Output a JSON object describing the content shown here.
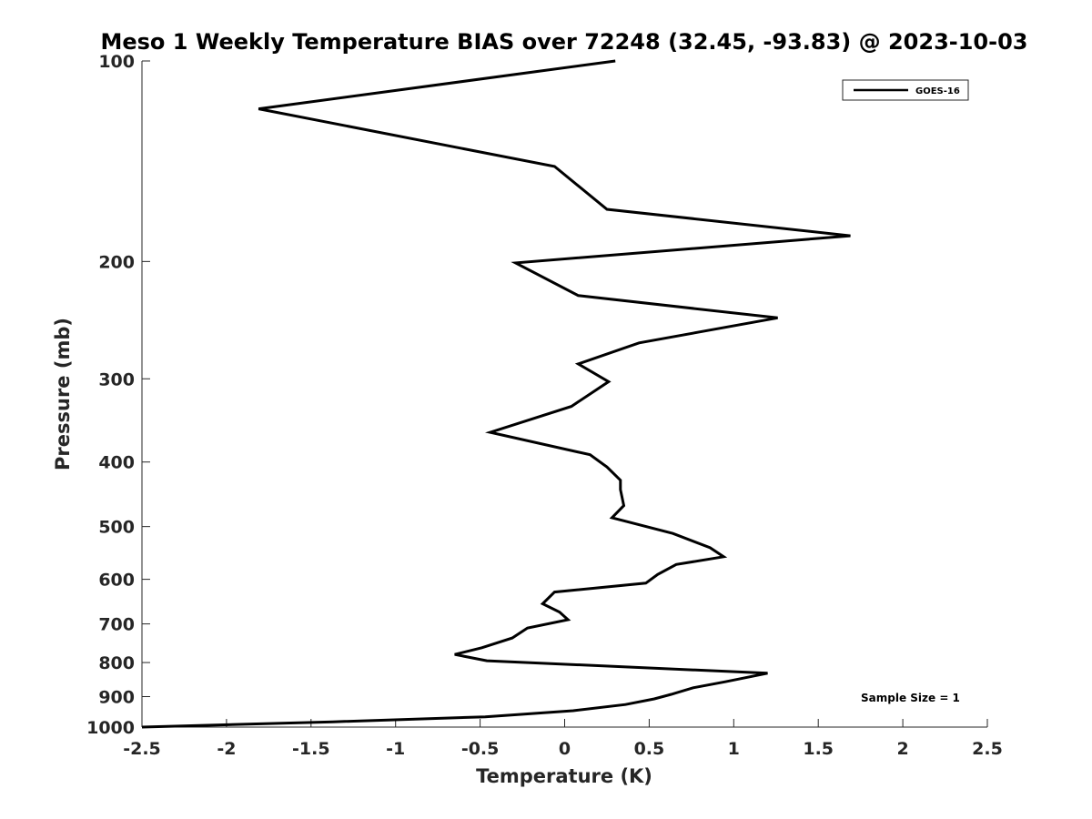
{
  "chart_data": {
    "type": "line",
    "title": "Meso 1 Weekly Temperature BIAS over 72248 (32.45, -93.83) @ 2023-10-03",
    "xlabel": "Temperature (K)",
    "ylabel": "Pressure (mb)",
    "xlim": [
      -2.5,
      2.5
    ],
    "ylim": [
      100,
      1000
    ],
    "y_scale": "log",
    "y_reversed": true,
    "grid": false,
    "x_ticks": [
      "-2.5",
      "-2",
      "-1.5",
      "-1",
      "-0.5",
      "0",
      "0.5",
      "1",
      "1.5",
      "2",
      "2.5"
    ],
    "y_ticks": [
      "100",
      "200",
      "300",
      "400",
      "500",
      "600",
      "700",
      "800",
      "900",
      "1000"
    ],
    "legend": {
      "position": "top-right",
      "entries": [
        "GOES-16"
      ]
    },
    "annotation": "Sample Size = 1",
    "series": [
      {
        "name": "GOES-16",
        "color": "#000000",
        "points": [
          [
            0.3,
            100
          ],
          [
            -1.81,
            118
          ],
          [
            -0.06,
            144
          ],
          [
            0.25,
            167
          ],
          [
            1.69,
            183
          ],
          [
            -0.29,
            201
          ],
          [
            0.08,
            225
          ],
          [
            1.26,
            243
          ],
          [
            0.44,
            265
          ],
          [
            0.08,
            285
          ],
          [
            0.26,
            303
          ],
          [
            0.04,
            330
          ],
          [
            -0.44,
            361
          ],
          [
            0.15,
            390
          ],
          [
            0.25,
            407
          ],
          [
            0.33,
            426
          ],
          [
            0.33,
            440
          ],
          [
            0.35,
            465
          ],
          [
            0.28,
            485
          ],
          [
            0.64,
            512
          ],
          [
            0.86,
            538
          ],
          [
            0.94,
            555
          ],
          [
            0.66,
            570
          ],
          [
            0.55,
            590
          ],
          [
            0.48,
            608
          ],
          [
            -0.06,
            627
          ],
          [
            -0.13,
            653
          ],
          [
            -0.03,
            672
          ],
          [
            0.02,
            690
          ],
          [
            -0.22,
            710
          ],
          [
            -0.31,
            735
          ],
          [
            -0.49,
            760
          ],
          [
            -0.65,
            778
          ],
          [
            -0.46,
            795
          ],
          [
            1.2,
            830
          ],
          [
            0.95,
            855
          ],
          [
            0.76,
            873
          ],
          [
            0.63,
            893
          ],
          [
            0.53,
            907
          ],
          [
            0.36,
            925
          ],
          [
            0.05,
            945
          ],
          [
            -0.47,
            965
          ],
          [
            -1.37,
            982
          ],
          [
            -2.5,
            1000
          ]
        ]
      }
    ]
  }
}
